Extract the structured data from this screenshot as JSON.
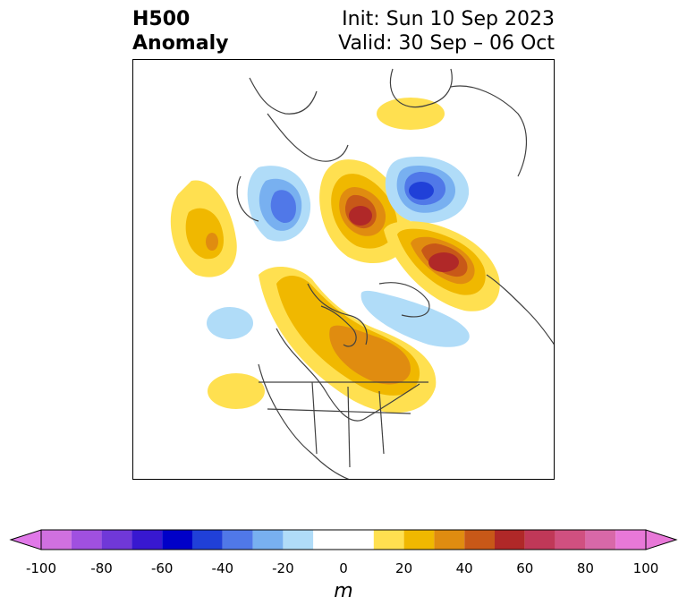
{
  "title": {
    "left_line1": "H500",
    "left_line2": "Anomaly",
    "right_line1": "Init: Sun 10 Sep 2023",
    "right_line2": "Valid: 30 Sep – 06 Oct"
  },
  "colorbar": {
    "unit": "m",
    "ticks": [
      "-100",
      "-80",
      "-60",
      "-40",
      "-20",
      "0",
      "20",
      "40",
      "60",
      "80",
      "100"
    ],
    "levels": [
      -100,
      -90,
      -80,
      -70,
      -60,
      -50,
      -40,
      -30,
      -20,
      -10,
      10,
      20,
      30,
      40,
      50,
      60,
      70,
      80,
      90,
      100
    ],
    "colors": [
      "#d070e0",
      "#a050e0",
      "#7038d8",
      "#3818d0",
      "#0000c8",
      "#2040d8",
      "#5078e8",
      "#78b0f0",
      "#b0dcf8",
      "#ffffff",
      "#ffe050",
      "#f0b800",
      "#e08c10",
      "#c85818",
      "#b02828",
      "#c03858",
      "#d05080",
      "#d868a8",
      "#e878d8"
    ],
    "under_color": "#e078e8",
    "over_color": "#e878d8"
  },
  "map": {
    "projection": "polar-stereographic",
    "region": "North America and Arctic",
    "anomalies": [
      {
        "name": "north-pacific-ridge",
        "value": 35
      },
      {
        "name": "alaska-trough",
        "value": -45
      },
      {
        "name": "greenland-arctic-ridge",
        "value": 65
      },
      {
        "name": "barents-trough",
        "value": -55
      },
      {
        "name": "scandinavia-ridge",
        "value": 62
      },
      {
        "name": "canada-ridge",
        "value": 45
      },
      {
        "name": "north-atlantic-trough",
        "value": -15
      },
      {
        "name": "east-pacific-trough",
        "value": -15
      },
      {
        "name": "siberia-ridge",
        "value": 15
      },
      {
        "name": "subtropical-pacific-ridge",
        "value": 15
      }
    ]
  }
}
